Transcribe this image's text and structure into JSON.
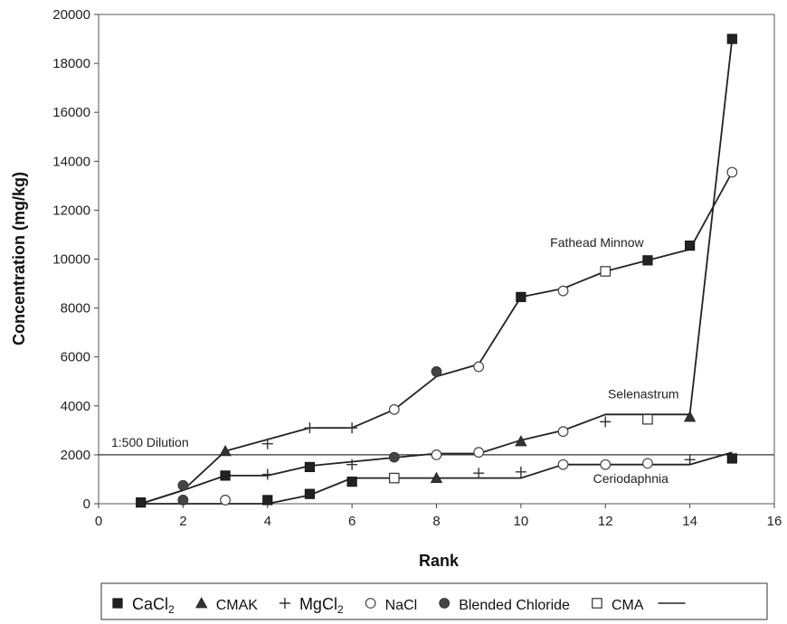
{
  "chart_data": {
    "type": "scatter",
    "xlabel": "Rank",
    "ylabel": "Concentration (mg/kg)",
    "xlim": [
      0,
      16
    ],
    "ylim": [
      0,
      20000
    ],
    "xticks": [
      0,
      2,
      4,
      6,
      8,
      10,
      12,
      14,
      16
    ],
    "yticks": [
      0,
      2000,
      4000,
      6000,
      8000,
      10000,
      12000,
      14000,
      16000,
      18000,
      20000
    ],
    "grid": false,
    "legend_position": "bottom",
    "series": [
      {
        "name": "CaCl",
        "name_sub": "2",
        "marker": "filled-square",
        "points": [
          [
            1,
            50
          ],
          [
            3,
            1150
          ],
          [
            4,
            150
          ],
          [
            5,
            1500
          ],
          [
            5,
            400
          ],
          [
            6,
            900
          ],
          [
            10,
            8450
          ],
          [
            13,
            9950
          ],
          [
            14,
            10550
          ],
          [
            15,
            19000
          ],
          [
            15,
            1850
          ]
        ]
      },
      {
        "name": "CMAK",
        "marker": "filled-triangle",
        "points": [
          [
            3,
            2150
          ],
          [
            8,
            1050
          ],
          [
            10,
            2550
          ],
          [
            14,
            3550
          ]
        ]
      },
      {
        "name": "MgCl",
        "name_sub": "2",
        "marker": "plus",
        "points": [
          [
            4,
            2450
          ],
          [
            4,
            1200
          ],
          [
            5,
            3100
          ],
          [
            6,
            3100
          ],
          [
            6,
            1600
          ],
          [
            9,
            1250
          ],
          [
            10,
            1300
          ],
          [
            12,
            3350
          ],
          [
            14,
            1800
          ]
        ]
      },
      {
        "name": "NaCl",
        "marker": "open-circle",
        "points": [
          [
            3,
            150
          ],
          [
            7,
            3850
          ],
          [
            8,
            2000
          ],
          [
            9,
            5600
          ],
          [
            9,
            2100
          ],
          [
            11,
            8700
          ],
          [
            11,
            2950
          ],
          [
            11,
            1600
          ],
          [
            12,
            1600
          ],
          [
            13,
            1650
          ],
          [
            15,
            13550
          ]
        ]
      },
      {
        "name": "Blended Chloride",
        "marker": "filled-circle",
        "points": [
          [
            2,
            750
          ],
          [
            2,
            150
          ],
          [
            7,
            1900
          ],
          [
            8,
            5400
          ]
        ]
      },
      {
        "name": "CMA",
        "marker": "open-square",
        "points": [
          [
            7,
            1050
          ],
          [
            12,
            9500
          ],
          [
            13,
            3450
          ]
        ]
      }
    ],
    "lines": [
      {
        "label": "Fathead Minnow",
        "points": [
          [
            1,
            0
          ],
          [
            2,
            550
          ],
          [
            3,
            2150
          ],
          [
            5,
            3100
          ],
          [
            6,
            3100
          ],
          [
            7,
            3850
          ],
          [
            8,
            5200
          ],
          [
            9,
            5700
          ],
          [
            10,
            8450
          ],
          [
            11,
            8800
          ],
          [
            12,
            9500
          ],
          [
            13,
            9950
          ],
          [
            14,
            10400
          ],
          [
            15,
            13550
          ]
        ]
      },
      {
        "label": "Selenastrum",
        "points": [
          [
            1,
            0
          ],
          [
            2,
            550
          ],
          [
            3,
            1150
          ],
          [
            4,
            1150
          ],
          [
            5,
            1550
          ],
          [
            8,
            2050
          ],
          [
            9,
            2050
          ],
          [
            10,
            2600
          ],
          [
            11,
            3000
          ],
          [
            12,
            3650
          ],
          [
            14,
            3650
          ],
          [
            15,
            19000
          ]
        ]
      },
      {
        "label": "Ceriodaphnia",
        "points": [
          [
            1,
            0
          ],
          [
            4,
            0
          ],
          [
            5,
            350
          ],
          [
            6,
            1050
          ],
          [
            9,
            1050
          ],
          [
            10,
            1050
          ],
          [
            11,
            1600
          ],
          [
            14,
            1600
          ],
          [
            15,
            2100
          ]
        ]
      }
    ],
    "reference_line": {
      "label": "1:500 Dilution",
      "y": 2000
    },
    "legend_line_label": "",
    "ytick_labels": [
      "0",
      "2000",
      "4000",
      "6000",
      "8000",
      "10000",
      "12000",
      "14000",
      "16000",
      "18000",
      "20000"
    ],
    "xtick_labels": [
      "0",
      "2",
      "4",
      "6",
      "8",
      "10",
      "12",
      "14",
      "16"
    ]
  }
}
